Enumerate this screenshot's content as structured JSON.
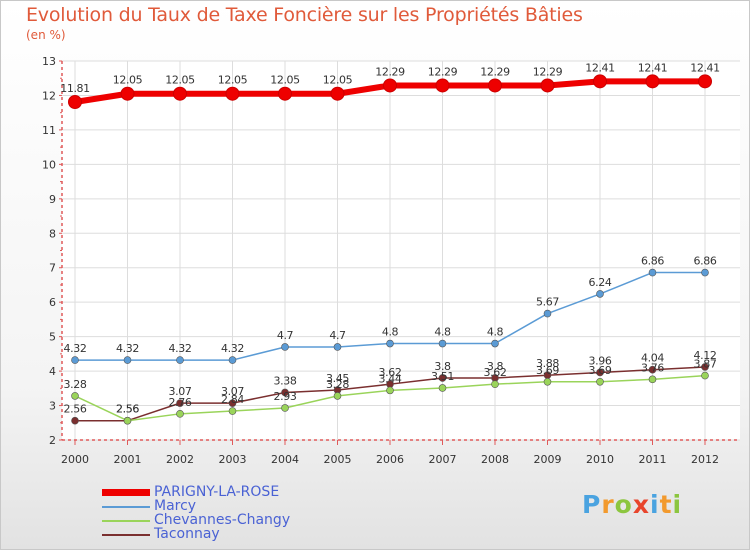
{
  "title": "Evolution du Taux de Taxe Foncière sur les Propriétés Bâties",
  "subtitle": "(en %)",
  "logo": {
    "letters": [
      "P",
      "r",
      "o",
      "x",
      "i",
      "t",
      "i"
    ],
    "colors": [
      "#4aa3e0",
      "#f29a2e",
      "#8cc63f",
      "#e8452c",
      "#4aa3e0",
      "#f29a2e",
      "#8cc63f"
    ]
  },
  "colors": {
    "axis": "#e05a5a",
    "grid": "#dddddd",
    "label": "#333333"
  },
  "chart_data": {
    "type": "line",
    "x": [
      "2000",
      "2001",
      "2002",
      "2003",
      "2004",
      "2005",
      "2006",
      "2007",
      "2008",
      "2009",
      "2010",
      "2011",
      "2012"
    ],
    "ylim": [
      2,
      13
    ],
    "yticks": [
      "2",
      "3",
      "4",
      "5",
      "6",
      "7",
      "8",
      "9",
      "10",
      "11",
      "12",
      "13"
    ],
    "grid": true,
    "legend_position": "bottom-left",
    "series": [
      {
        "name": "PARIGNY-LA-ROSE",
        "color": "#ee0000",
        "values": [
          11.81,
          12.05,
          12.05,
          12.05,
          12.05,
          12.05,
          12.29,
          12.29,
          12.29,
          12.29,
          12.41,
          12.41,
          12.41
        ],
        "labels": [
          "11.81",
          "12.05",
          "12.05",
          "12.05",
          "12.05",
          "12.05",
          "12.29",
          "12.29",
          "12.29",
          "12.29",
          "12.41",
          "12.41",
          "12.41"
        ]
      },
      {
        "name": "Marcy",
        "color": "#5b9bd5",
        "values": [
          4.32,
          4.32,
          4.32,
          4.32,
          4.7,
          4.7,
          4.8,
          4.8,
          4.8,
          5.67,
          6.24,
          6.86,
          6.86
        ],
        "labels": [
          "4.32",
          "4.32",
          "4.32",
          "4.32",
          "4.7",
          "4.7",
          "4.8",
          "4.8",
          "4.8",
          "5.67",
          "6.24",
          "6.86",
          "6.86"
        ]
      },
      {
        "name": "Chevannes-Changy",
        "color": "#9ad45a",
        "values": [
          3.28,
          2.56,
          2.76,
          2.84,
          2.93,
          3.28,
          3.44,
          3.51,
          3.62,
          3.69,
          3.69,
          3.76,
          3.87
        ],
        "labels": [
          "3.28",
          "2.56",
          "2.76",
          "2.84",
          "2.93",
          "3.28",
          "3.44",
          "3.51",
          "3.62",
          "3.69",
          "3.69",
          "3.76",
          "3.87"
        ]
      },
      {
        "name": "Taconnay",
        "color": "#7a2f2f",
        "values": [
          2.56,
          2.56,
          3.07,
          3.07,
          3.38,
          3.45,
          3.62,
          3.8,
          3.8,
          3.88,
          3.96,
          4.04,
          4.12
        ],
        "labels": [
          "2.56",
          "2.56",
          "3.07",
          "3.07",
          "3.38",
          "3.45",
          "3.62",
          "3.8",
          "3.8",
          "3.88",
          "3.96",
          "4.04",
          "4.12"
        ]
      }
    ]
  }
}
